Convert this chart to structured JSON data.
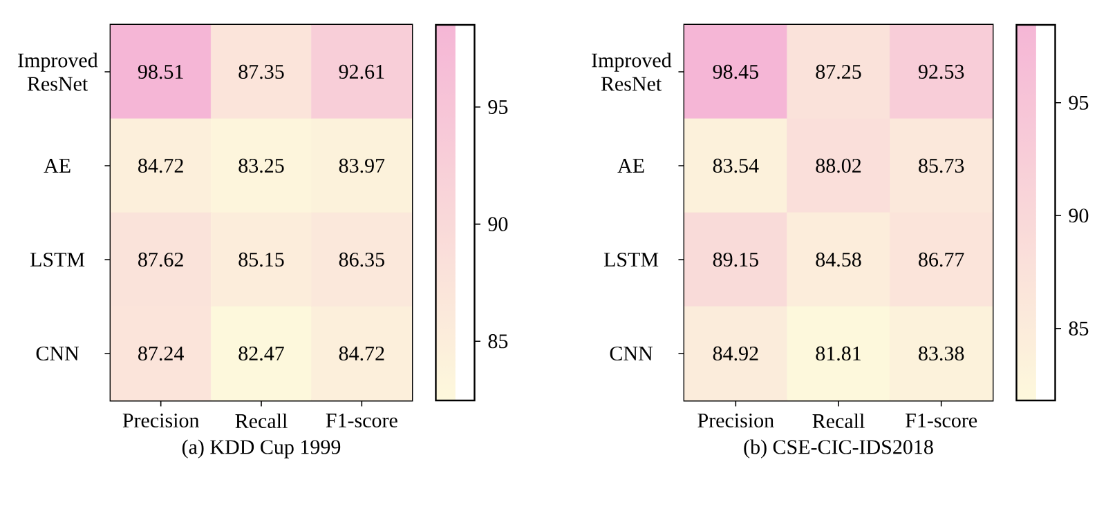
{
  "chart_data": [
    {
      "type": "heatmap",
      "title": "(a) KDD Cup 1999",
      "categories": [
        "Precision",
        "Recall",
        "F1-score"
      ],
      "y_categories": [
        "Improved ResNet",
        "AE",
        "LSTM",
        "CNN"
      ],
      "cells": [
        [
          98.51,
          87.35,
          92.61
        ],
        [
          84.72,
          83.25,
          83.97
        ],
        [
          87.62,
          85.15,
          86.35
        ],
        [
          87.24,
          82.47,
          84.72
        ]
      ],
      "data_labels": true,
      "clim": [
        82.47,
        98.51
      ],
      "cticks": [
        85,
        90,
        95
      ]
    },
    {
      "type": "heatmap",
      "title": "(b) CSE-CIC-IDS2018",
      "categories": [
        "Precision",
        "Recall",
        "F1-score"
      ],
      "y_categories": [
        "Improved ResNet",
        "AE",
        "LSTM",
        "CNN"
      ],
      "cells": [
        [
          98.45,
          87.25,
          92.53
        ],
        [
          83.54,
          88.02,
          85.73
        ],
        [
          89.15,
          84.58,
          86.77
        ],
        [
          84.92,
          81.81,
          83.38
        ]
      ],
      "data_labels": true,
      "clim": [
        81.81,
        98.45
      ],
      "cticks": [
        85,
        90,
        95
      ]
    }
  ]
}
